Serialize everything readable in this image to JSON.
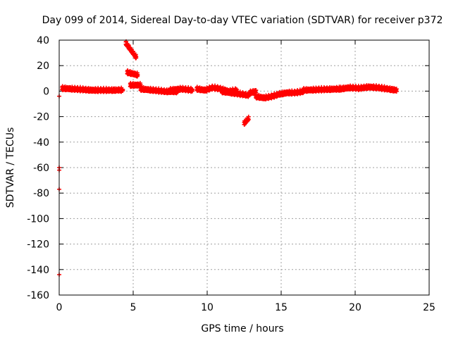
{
  "chart_data": {
    "type": "scatter",
    "title": "Day 099 of 2014, Sidereal Day-to-day VTEC variation (SDTVAR) for receiver p372",
    "xlabel": "GPS time / hours",
    "ylabel": "SDTVAR / TECUs",
    "xlim": [
      0,
      25
    ],
    "ylim": [
      -160,
      40
    ],
    "xticks": [
      0,
      5,
      10,
      15,
      20,
      25
    ],
    "yticks": [
      -160,
      -140,
      -120,
      -100,
      -80,
      -60,
      -40,
      -20,
      0,
      20,
      40
    ],
    "grid": true,
    "marker": "plus",
    "color": "#ff0000",
    "segments": [
      {
        "x_range": [
          0.2,
          4.3
        ],
        "y": [
          2.5,
          2.0,
          1.5,
          1.0,
          1.0,
          1.0,
          1.2
        ]
      },
      {
        "x_range": [
          4.5,
          5.2
        ],
        "y": [
          38,
          27
        ]
      },
      {
        "x_range": [
          4.6,
          5.3
        ],
        "y": [
          15,
          13
        ]
      },
      {
        "x_range": [
          4.8,
          5.5
        ],
        "y": [
          5,
          5
        ]
      },
      {
        "x_range": [
          5.5,
          8.0
        ],
        "y": [
          2,
          1,
          0,
          0
        ]
      },
      {
        "x_range": [
          7.5,
          9.0
        ],
        "y": [
          1,
          2,
          1
        ]
      },
      {
        "x_range": [
          9.3,
          12.0
        ],
        "y": [
          2,
          1,
          3,
          2,
          0,
          1
        ]
      },
      {
        "x_range": [
          11.0,
          12.8
        ],
        "y": [
          0,
          -1,
          -2,
          -3
        ]
      },
      {
        "x_range": [
          12.5,
          12.8
        ],
        "y": [
          -25,
          -21
        ]
      },
      {
        "x_range": [
          12.9,
          13.3
        ],
        "y": [
          -1,
          0
        ]
      },
      {
        "x_range": [
          13.3,
          16.5
        ],
        "y": [
          -4,
          -5,
          -4,
          -2,
          -1,
          -1,
          0
        ]
      },
      {
        "x_range": [
          16.5,
          19.0
        ],
        "y": [
          1,
          1.5,
          2
        ]
      },
      {
        "x_range": [
          19.0,
          22.8
        ],
        "y": [
          2,
          3,
          2.5,
          3.5,
          3,
          2,
          1
        ]
      }
    ],
    "points": [
      {
        "x": 0.0,
        "y": -4
      },
      {
        "x": 0.0,
        "y": -60
      },
      {
        "x": 0.0,
        "y": -62
      },
      {
        "x": 0.0,
        "y": -77
      },
      {
        "x": 0.0,
        "y": -144
      },
      {
        "x": 13.2,
        "y": -3
      },
      {
        "x": 12.0,
        "y": -2
      }
    ]
  }
}
